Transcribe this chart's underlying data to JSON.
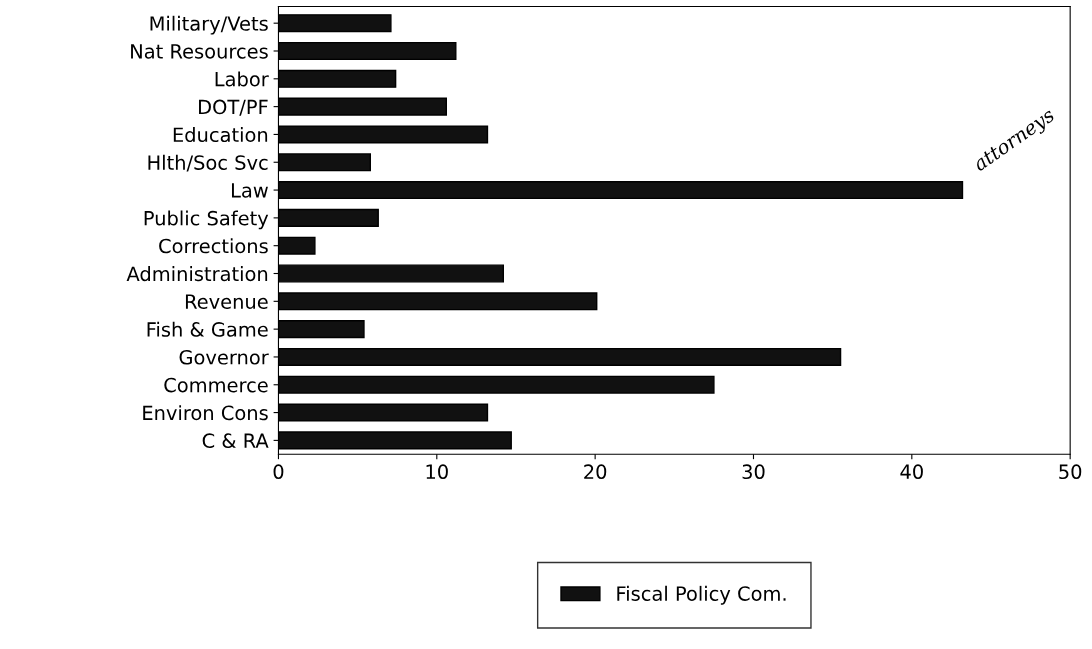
{
  "chart_data": {
    "type": "bar",
    "orientation": "horizontal",
    "categories": [
      "Military/Vets",
      "Nat Resources",
      "Labor",
      "DOT/PF",
      "Education",
      "Hlth/Soc Svc",
      "Law",
      "Public Safety",
      "Corrections",
      "Administration",
      "Revenue",
      "Fish & Game",
      "Governor",
      "Commerce",
      "Environ Cons",
      "C & RA"
    ],
    "series": [
      {
        "name": "Fiscal Policy Com.",
        "color": "#111111",
        "values": [
          7.1,
          11.2,
          7.4,
          10.6,
          13.2,
          5.8,
          43.2,
          6.3,
          2.3,
          14.2,
          20.1,
          5.4,
          35.5,
          27.5,
          13.2,
          14.7
        ]
      }
    ],
    "xlim": [
      0,
      50
    ],
    "xticks": [
      0,
      10,
      20,
      30,
      40,
      50
    ],
    "grid": false,
    "legend": "bottom",
    "annotations": [
      "attorneys"
    ]
  }
}
